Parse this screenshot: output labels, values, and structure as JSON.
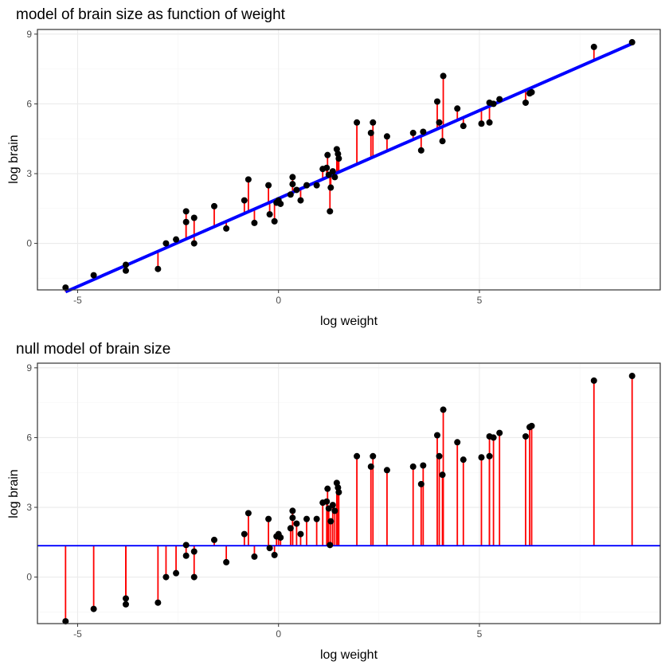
{
  "chart_data": [
    {
      "type": "scatter",
      "title": "model of brain size as function of weight",
      "xlabel": "log weight",
      "ylabel": "log brain",
      "xlim": [
        -6,
        9.5
      ],
      "ylim": [
        -2,
        9.2
      ],
      "x_ticks": [
        -5,
        0,
        5
      ],
      "y_ticks": [
        0,
        3,
        6,
        9
      ],
      "grid": true,
      "fit_line": {
        "type": "linear",
        "intercept": 1.93,
        "slope": 0.757,
        "color": "#0000ff"
      },
      "residual_color": "#ff0000",
      "point_color": "#000000",
      "points": [
        {
          "x": -5.3,
          "y": -1.9
        },
        {
          "x": -4.6,
          "y": -1.37
        },
        {
          "x": -3.8,
          "y": -0.92
        },
        {
          "x": -3.8,
          "y": -1.17
        },
        {
          "x": -3.0,
          "y": -1.1
        },
        {
          "x": -2.8,
          "y": 0.0
        },
        {
          "x": -2.55,
          "y": 0.17
        },
        {
          "x": -2.3,
          "y": 1.38
        },
        {
          "x": -2.3,
          "y": 0.92
        },
        {
          "x": -2.1,
          "y": 1.1
        },
        {
          "x": -2.1,
          "y": 0.0
        },
        {
          "x": -1.6,
          "y": 1.6
        },
        {
          "x": -1.3,
          "y": 0.64
        },
        {
          "x": -0.85,
          "y": 1.85
        },
        {
          "x": -0.75,
          "y": 2.75
        },
        {
          "x": -0.6,
          "y": 0.88
        },
        {
          "x": -0.25,
          "y": 2.5
        },
        {
          "x": -0.22,
          "y": 1.25
        },
        {
          "x": -0.1,
          "y": 0.95
        },
        {
          "x": -0.05,
          "y": 1.75
        },
        {
          "x": 0.0,
          "y": 1.85
        },
        {
          "x": 0.05,
          "y": 1.7
        },
        {
          "x": 0.3,
          "y": 2.1
        },
        {
          "x": 0.35,
          "y": 2.85
        },
        {
          "x": 0.35,
          "y": 2.55
        },
        {
          "x": 0.45,
          "y": 2.3
        },
        {
          "x": 0.55,
          "y": 1.85
        },
        {
          "x": 0.7,
          "y": 2.5
        },
        {
          "x": 0.95,
          "y": 2.5
        },
        {
          "x": 1.1,
          "y": 3.2
        },
        {
          "x": 1.2,
          "y": 3.25
        },
        {
          "x": 1.22,
          "y": 3.8
        },
        {
          "x": 1.25,
          "y": 2.95
        },
        {
          "x": 1.28,
          "y": 1.38
        },
        {
          "x": 1.3,
          "y": 2.4
        },
        {
          "x": 1.35,
          "y": 3.1
        },
        {
          "x": 1.4,
          "y": 2.85
        },
        {
          "x": 1.45,
          "y": 4.05
        },
        {
          "x": 1.48,
          "y": 3.85
        },
        {
          "x": 1.5,
          "y": 3.65
        },
        {
          "x": 1.95,
          "y": 5.2
        },
        {
          "x": 2.3,
          "y": 4.75
        },
        {
          "x": 2.35,
          "y": 5.2
        },
        {
          "x": 2.7,
          "y": 4.6
        },
        {
          "x": 3.35,
          "y": 4.75
        },
        {
          "x": 3.6,
          "y": 4.8
        },
        {
          "x": 3.55,
          "y": 4.0
        },
        {
          "x": 3.95,
          "y": 6.1
        },
        {
          "x": 4.0,
          "y": 5.2
        },
        {
          "x": 4.1,
          "y": 7.2
        },
        {
          "x": 4.08,
          "y": 4.4
        },
        {
          "x": 4.45,
          "y": 5.8
        },
        {
          "x": 4.6,
          "y": 5.05
        },
        {
          "x": 5.05,
          "y": 5.15
        },
        {
          "x": 5.25,
          "y": 6.05
        },
        {
          "x": 5.25,
          "y": 5.2
        },
        {
          "x": 5.35,
          "y": 6.0
        },
        {
          "x": 5.5,
          "y": 6.2
        },
        {
          "x": 6.15,
          "y": 6.05
        },
        {
          "x": 6.25,
          "y": 6.45
        },
        {
          "x": 6.3,
          "y": 6.5
        },
        {
          "x": 7.85,
          "y": 8.45
        },
        {
          "x": 8.8,
          "y": 8.65
        }
      ]
    },
    {
      "type": "scatter",
      "title": "null model of brain size",
      "xlabel": "log weight",
      "ylabel": "log brain",
      "xlim": [
        -6,
        9.5
      ],
      "ylim": [
        -2,
        9.2
      ],
      "x_ticks": [
        -5,
        0,
        5
      ],
      "y_ticks": [
        0,
        3,
        6,
        9
      ],
      "grid": true,
      "fit_line": {
        "type": "horizontal",
        "y": 1.35,
        "color": "#0000ff"
      },
      "residual_color": "#ff0000",
      "point_color": "#000000",
      "points_ref": "same points as first chart"
    }
  ]
}
